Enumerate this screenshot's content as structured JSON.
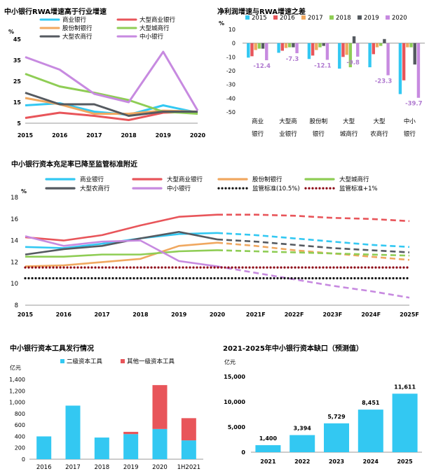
{
  "chart_data": [
    {
      "type": "line",
      "title": "中小银行RWA增速高于行业增速",
      "ylabel": "%",
      "x": [
        "2015",
        "2016",
        "2017",
        "2018",
        "2019",
        "2020"
      ],
      "ylim": [
        5,
        45
      ],
      "yticks": [
        "5",
        "15",
        "25",
        "35",
        "45"
      ],
      "series": [
        {
          "name": "商业银行",
          "color": "#33c8f2",
          "values": [
            13.5,
            14.5,
            10.5,
            9.0,
            13.5,
            10.0
          ]
        },
        {
          "name": "大型商业银行",
          "color": "#e8555a",
          "values": [
            7.5,
            10.0,
            8.5,
            6.5,
            10.0,
            10.5
          ]
        },
        {
          "name": "股份制银行",
          "color": "#f0a860",
          "values": [
            17.0,
            14.0,
            9.5,
            9.5,
            11.0,
            10.5
          ]
        },
        {
          "name": "大型城商行",
          "color": "#8fcd55",
          "values": [
            28.5,
            22.5,
            19.5,
            16.0,
            10.5,
            9.5
          ]
        },
        {
          "name": "大型农商行",
          "color": "#555a60",
          "values": [
            19.5,
            14.0,
            14.0,
            8.5,
            10.5,
            10.5
          ]
        },
        {
          "name": "中小银行",
          "color": "#c78ae0",
          "values": [
            36.5,
            30.5,
            19.0,
            15.0,
            39.0,
            11.0
          ]
        }
      ]
    },
    {
      "type": "bar",
      "title": "净利润增速与RWA增速之差",
      "ylabel": "%",
      "categories": [
        "商业\n银行",
        "大型商\n业银行",
        "股份制\n银行",
        "大型\n城商行",
        "大型\n农商行",
        "中小\n银行"
      ],
      "ylim": [
        -50,
        10
      ],
      "yticks": [
        "10",
        "0",
        "-10",
        "-20",
        "-30",
        "-40",
        "-50"
      ],
      "data_labels": [
        "-12.4",
        "-7.3",
        "-12.1",
        "-9.8",
        "-23.3",
        "-39.7"
      ],
      "series": [
        {
          "name": "2015",
          "color": "#33c8f2",
          "values": [
            -10.5,
            -7.0,
            -11.5,
            -18.5,
            -17.5,
            -37.0
          ]
        },
        {
          "name": "2016",
          "color": "#e8555a",
          "values": [
            -9.5,
            -5.5,
            -9.0,
            -10.0,
            -8.0,
            -27.0
          ]
        },
        {
          "name": "2017",
          "color": "#f0a860",
          "values": [
            -5.0,
            -3.5,
            -5.0,
            -8.5,
            -3.0,
            -3.0
          ]
        },
        {
          "name": "2018",
          "color": "#8fcd55",
          "values": [
            -4.0,
            -3.0,
            -3.0,
            -17.5,
            -2.0,
            -3.0
          ]
        },
        {
          "name": "2019",
          "color": "#555a60",
          "values": [
            -4.0,
            -3.0,
            -2.0,
            5.0,
            3.0,
            -15.5
          ]
        },
        {
          "name": "2020",
          "color": "#c78ae0",
          "values": [
            -12.4,
            -7.3,
            -12.1,
            -9.8,
            -23.3,
            -39.7
          ]
        }
      ]
    },
    {
      "type": "line",
      "title": "中小银行资本充足率已降至监管标准附近",
      "ylabel": "%",
      "x": [
        "2015",
        "2016",
        "2017",
        "2018",
        "2019",
        "2020",
        "2021F",
        "2022F",
        "2023F",
        "2024F",
        "2025F"
      ],
      "ylim": [
        8,
        18
      ],
      "yticks": [
        "8",
        "10",
        "12",
        "14",
        "16",
        "18"
      ],
      "forecast_from": "2020",
      "series": [
        {
          "name": "商业银行",
          "color": "#33c8f2",
          "style": "solid",
          "values": [
            13.4,
            13.3,
            13.7,
            14.2,
            14.6,
            14.7,
            14.5,
            14.2,
            13.9,
            13.6,
            13.4
          ]
        },
        {
          "name": "大型商业银行",
          "color": "#e8555a",
          "style": "solid",
          "values": [
            14.3,
            14.0,
            14.5,
            15.4,
            16.2,
            16.4,
            16.4,
            16.3,
            16.1,
            16.0,
            15.8
          ]
        },
        {
          "name": "股份制银行",
          "color": "#f0a860",
          "style": "solid",
          "values": [
            11.6,
            11.7,
            12.0,
            12.3,
            13.5,
            13.8,
            13.5,
            13.1,
            12.8,
            12.5,
            12.2
          ]
        },
        {
          "name": "大型城商行",
          "color": "#8fcd55",
          "style": "solid",
          "values": [
            12.5,
            12.5,
            12.7,
            12.7,
            13.0,
            13.1,
            13.0,
            12.9,
            12.8,
            12.7,
            12.6
          ]
        },
        {
          "name": "大型农商行",
          "color": "#555a60",
          "style": "solid",
          "values": [
            12.7,
            13.2,
            13.5,
            14.2,
            14.8,
            14.1,
            13.9,
            13.6,
            13.3,
            13.1,
            12.9
          ]
        },
        {
          "name": "中小银行",
          "color": "#c78ae0",
          "style": "solid",
          "values": [
            14.4,
            13.5,
            13.9,
            14.0,
            12.1,
            11.6,
            11.0,
            10.4,
            9.8,
            9.3,
            8.7
          ]
        },
        {
          "name": "监管标准(10.5%)",
          "color": "#111111",
          "style": "dotted",
          "values": [
            10.5,
            10.5,
            10.5,
            10.5,
            10.5,
            10.5,
            10.5,
            10.5,
            10.5,
            10.5,
            10.5
          ]
        },
        {
          "name": "监管标准+1%",
          "color": "#8b0012",
          "style": "dotted",
          "values": [
            11.5,
            11.5,
            11.5,
            11.5,
            11.5,
            11.5,
            11.5,
            11.5,
            11.5,
            11.5,
            11.5
          ]
        }
      ]
    },
    {
      "type": "bar",
      "stacked": true,
      "title": "中小银行资本工具发行情况",
      "ylabel": "亿元",
      "categories": [
        "2016",
        "2017",
        "2018",
        "2019",
        "2020",
        "1H2021"
      ],
      "ylim": [
        0,
        1400
      ],
      "yticks": [
        "0",
        "200",
        "400",
        "600",
        "800",
        "1,000",
        "1,200",
        "1,400"
      ],
      "series": [
        {
          "name": "二级资本工具",
          "color": "#33c8f2",
          "values": [
            400,
            940,
            380,
            440,
            530,
            330
          ]
        },
        {
          "name": "其他一级资本工具",
          "color": "#e8555a",
          "values": [
            0,
            0,
            0,
            40,
            770,
            390
          ]
        }
      ]
    },
    {
      "type": "bar",
      "title": "2021-2025年中小银行资本缺口（预测值）",
      "ylabel": "亿元",
      "categories": [
        "2021",
        "2022",
        "2023",
        "2024",
        "2025"
      ],
      "ylim": [
        0,
        15000
      ],
      "yticks": [
        "0",
        "5,000",
        "10,000",
        "15,000"
      ],
      "values": [
        1400,
        3394,
        5729,
        8451,
        11611
      ],
      "data_labels": [
        "1,400",
        "3,394",
        "5,729",
        "8,451",
        "11,611"
      ],
      "color": "#33c8f2"
    }
  ]
}
